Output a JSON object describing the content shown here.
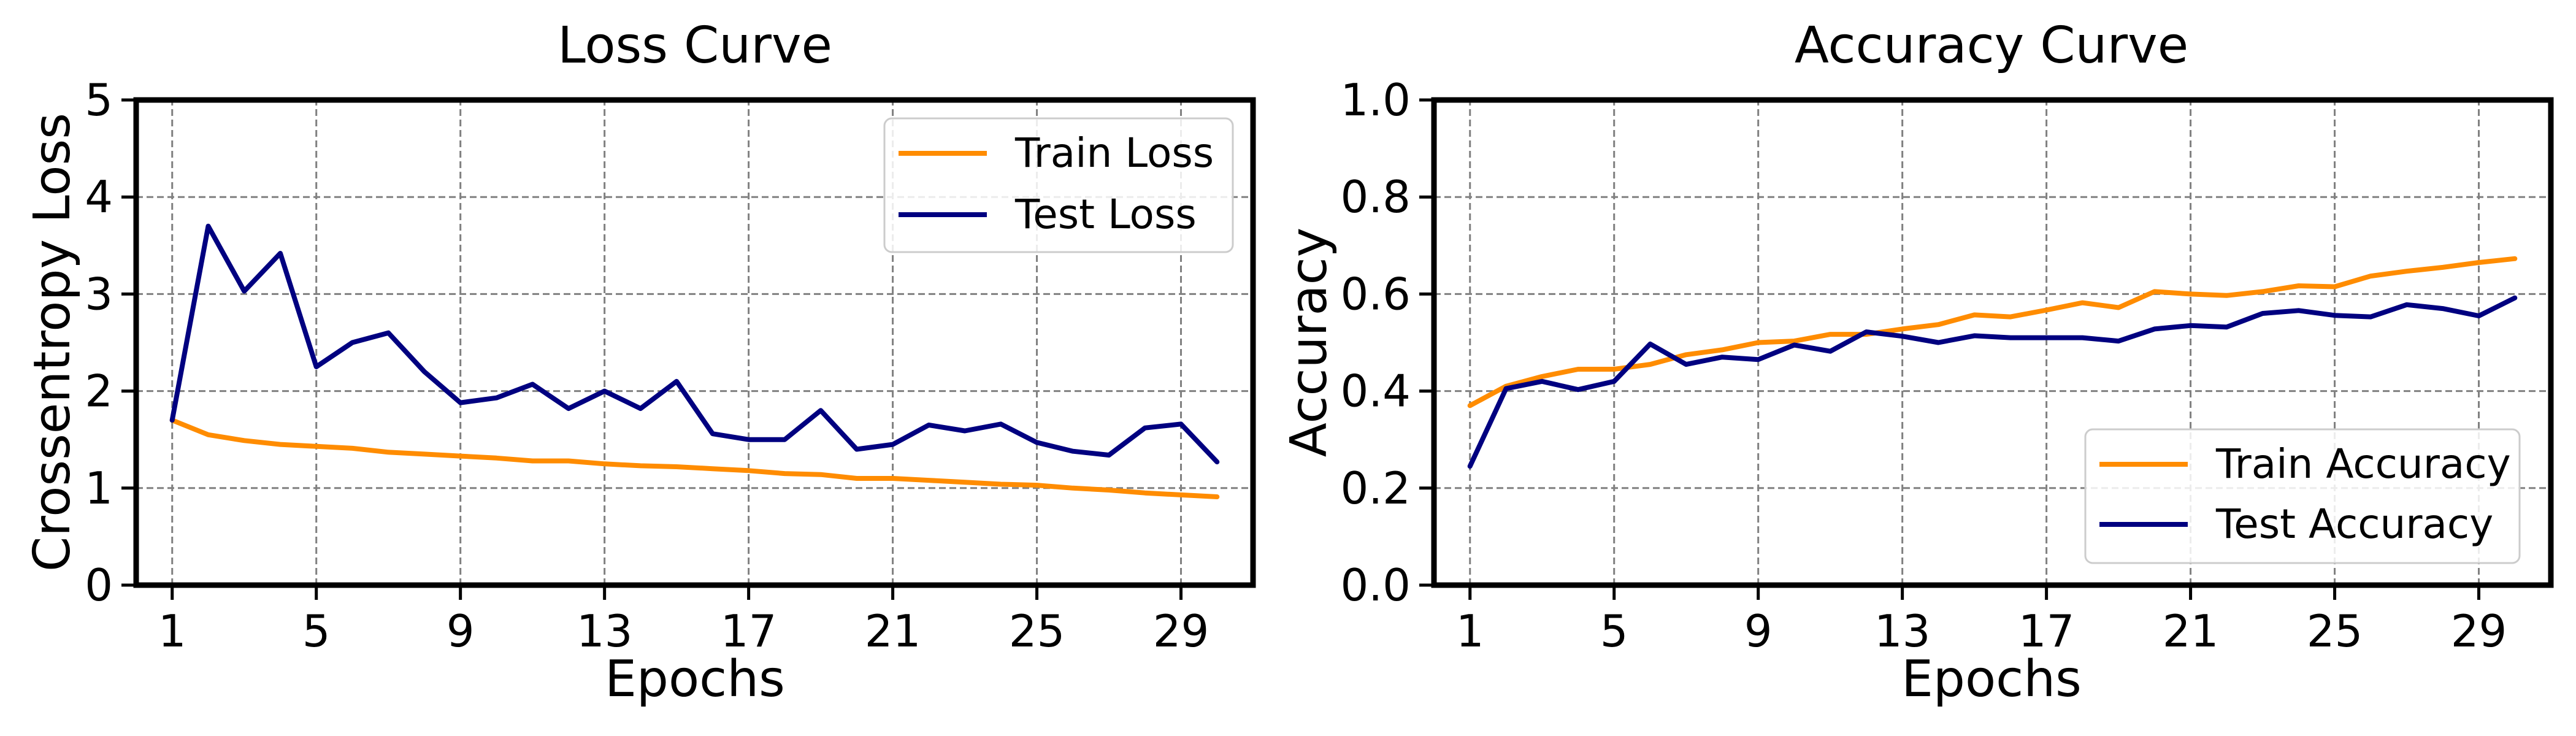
{
  "chart_data": [
    {
      "type": "line",
      "title": "Loss Curve",
      "xlabel": "Epochs",
      "ylabel": "Crossentropy Loss",
      "xlim": [
        0,
        31
      ],
      "ylim": [
        0,
        5
      ],
      "xticks": [
        1,
        5,
        9,
        13,
        17,
        21,
        25,
        29
      ],
      "yticks": [
        0,
        1,
        2,
        3,
        4,
        5
      ],
      "grid": true,
      "legend_position": "top-right",
      "x": [
        1,
        2,
        3,
        4,
        5,
        6,
        7,
        8,
        9,
        10,
        11,
        12,
        13,
        14,
        15,
        16,
        17,
        18,
        19,
        20,
        21,
        22,
        23,
        24,
        25,
        26,
        27,
        28,
        29,
        30
      ],
      "series": [
        {
          "name": "Train Loss",
          "color": "#ff8c00",
          "values": [
            1.7,
            1.55,
            1.49,
            1.45,
            1.43,
            1.41,
            1.37,
            1.35,
            1.33,
            1.31,
            1.28,
            1.28,
            1.25,
            1.23,
            1.22,
            1.2,
            1.18,
            1.15,
            1.14,
            1.1,
            1.1,
            1.08,
            1.06,
            1.04,
            1.03,
            1.0,
            0.98,
            0.95,
            0.93,
            0.91
          ]
        },
        {
          "name": "Test Loss",
          "color": "#000080",
          "values": [
            1.7,
            3.7,
            3.03,
            3.42,
            2.25,
            2.5,
            2.6,
            2.2,
            1.88,
            1.93,
            2.07,
            1.82,
            2.0,
            1.82,
            2.1,
            1.56,
            1.5,
            1.5,
            1.8,
            1.4,
            1.45,
            1.65,
            1.59,
            1.66,
            1.47,
            1.38,
            1.34,
            1.62,
            1.66,
            1.27
          ]
        }
      ]
    },
    {
      "type": "line",
      "title": "Accuracy Curve",
      "xlabel": "Epochs",
      "ylabel": "Accuracy",
      "xlim": [
        0,
        31
      ],
      "ylim": [
        0.0,
        1.0
      ],
      "xticks": [
        1,
        5,
        9,
        13,
        17,
        21,
        25,
        29
      ],
      "yticks": [
        0.0,
        0.2,
        0.4,
        0.6,
        0.8,
        1.0
      ],
      "grid": true,
      "legend_position": "bottom-right",
      "x": [
        1,
        2,
        3,
        4,
        5,
        6,
        7,
        8,
        9,
        10,
        11,
        12,
        13,
        14,
        15,
        16,
        17,
        18,
        19,
        20,
        21,
        22,
        23,
        24,
        25,
        26,
        27,
        28,
        29,
        30
      ],
      "series": [
        {
          "name": "Train Accuracy",
          "color": "#ff8c00",
          "values": [
            0.37,
            0.41,
            0.43,
            0.445,
            0.445,
            0.455,
            0.475,
            0.485,
            0.5,
            0.503,
            0.517,
            0.517,
            0.528,
            0.537,
            0.557,
            0.553,
            0.567,
            0.582,
            0.572,
            0.605,
            0.6,
            0.597,
            0.605,
            0.617,
            0.615,
            0.637,
            0.647,
            0.655,
            0.665,
            0.673
          ]
        },
        {
          "name": "Test Accuracy",
          "color": "#000080",
          "values": [
            0.245,
            0.405,
            0.42,
            0.403,
            0.42,
            0.497,
            0.455,
            0.47,
            0.465,
            0.495,
            0.482,
            0.522,
            0.513,
            0.5,
            0.514,
            0.51,
            0.51,
            0.51,
            0.503,
            0.528,
            0.535,
            0.532,
            0.56,
            0.566,
            0.556,
            0.553,
            0.578,
            0.57,
            0.555,
            0.592
          ]
        }
      ]
    }
  ]
}
